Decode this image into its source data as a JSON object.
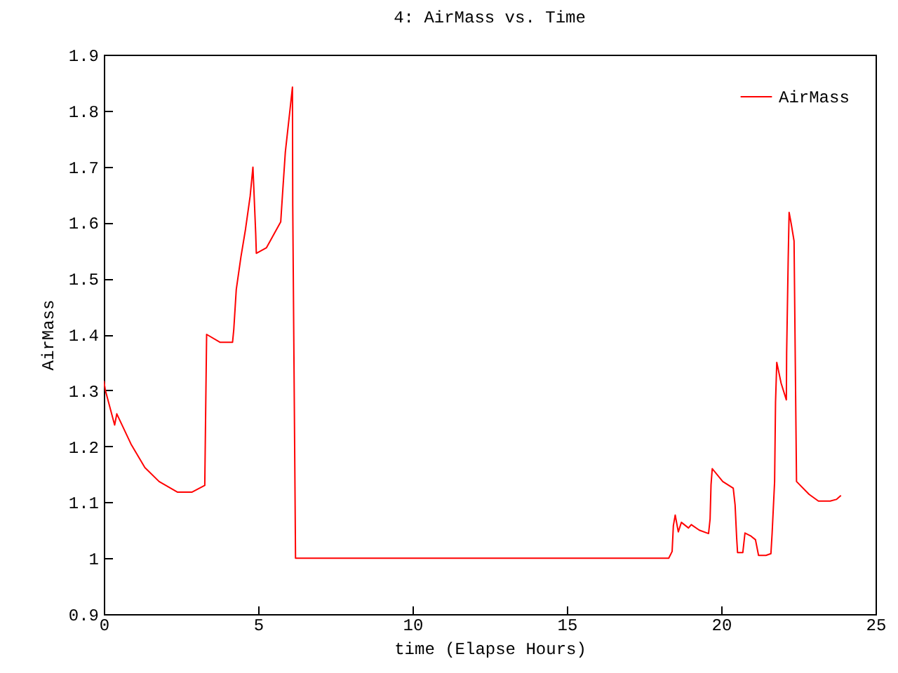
{
  "chart_data": {
    "type": "line",
    "title": "4: AirMass vs. Time",
    "xlabel": "time (Elapse Hours)",
    "ylabel": "AirMass",
    "xlim": [
      0,
      25
    ],
    "xticks": [
      0,
      5,
      10,
      15,
      20,
      25
    ],
    "ylim": [
      0.9,
      1.9
    ],
    "yticks": [
      0.9,
      1,
      1.1,
      1.2,
      1.3,
      1.4,
      1.5,
      1.6,
      1.7,
      1.8,
      1.9
    ],
    "grid": false,
    "legend": "top right",
    "marker": "none",
    "line_style": "solid",
    "series": [
      {
        "name": "AirMass",
        "color": "#ff0000",
        "x": [
          0,
          0.05,
          0.35,
          0.42,
          0.88,
          1.33,
          1.79,
          2.39,
          2.85,
          3.27,
          3.3,
          3.33,
          3.76,
          4.17,
          4.21,
          4.29,
          4.44,
          4.59,
          4.74,
          4.83,
          4.86,
          4.92,
          4.94,
          5.27,
          5.73,
          5.8,
          5.88,
          5.98,
          6.03,
          6.11,
          6.12,
          6.18,
          6.21,
          18.3,
          18.41,
          18.45,
          18.51,
          18.61,
          18.71,
          18.94,
          19.03,
          19.29,
          19.59,
          19.64,
          19.67,
          19.71,
          20.05,
          20.39,
          20.45,
          20.5,
          20.53,
          20.7,
          20.77,
          20.95,
          21.11,
          21.21,
          21.45,
          21.61,
          21.65,
          21.73,
          21.76,
          21.8,
          21.94,
          22.11,
          22.12,
          22.17,
          22.2,
          22.27,
          22.36,
          22.4,
          22.44,
          22.85,
          23.15,
          23.53,
          23.73,
          23.88
        ],
        "values": [
          1.317,
          1.3,
          1.238,
          1.258,
          1.204,
          1.162,
          1.137,
          1.118,
          1.118,
          1.13,
          1.267,
          1.4,
          1.386,
          1.386,
          1.409,
          1.48,
          1.538,
          1.588,
          1.647,
          1.699,
          1.66,
          1.58,
          1.545,
          1.555,
          1.601,
          1.66,
          1.726,
          1.776,
          1.801,
          1.842,
          1.63,
          1.211,
          1.0,
          1.0,
          1.012,
          1.058,
          1.077,
          1.047,
          1.064,
          1.054,
          1.06,
          1.05,
          1.044,
          1.07,
          1.131,
          1.16,
          1.137,
          1.125,
          1.095,
          1.037,
          1.01,
          1.01,
          1.045,
          1.04,
          1.033,
          1.005,
          1.005,
          1.008,
          1.045,
          1.137,
          1.279,
          1.35,
          1.313,
          1.283,
          1.367,
          1.534,
          1.618,
          1.597,
          1.567,
          1.35,
          1.137,
          1.114,
          1.102,
          1.102,
          1.105,
          1.112
        ]
      }
    ]
  }
}
